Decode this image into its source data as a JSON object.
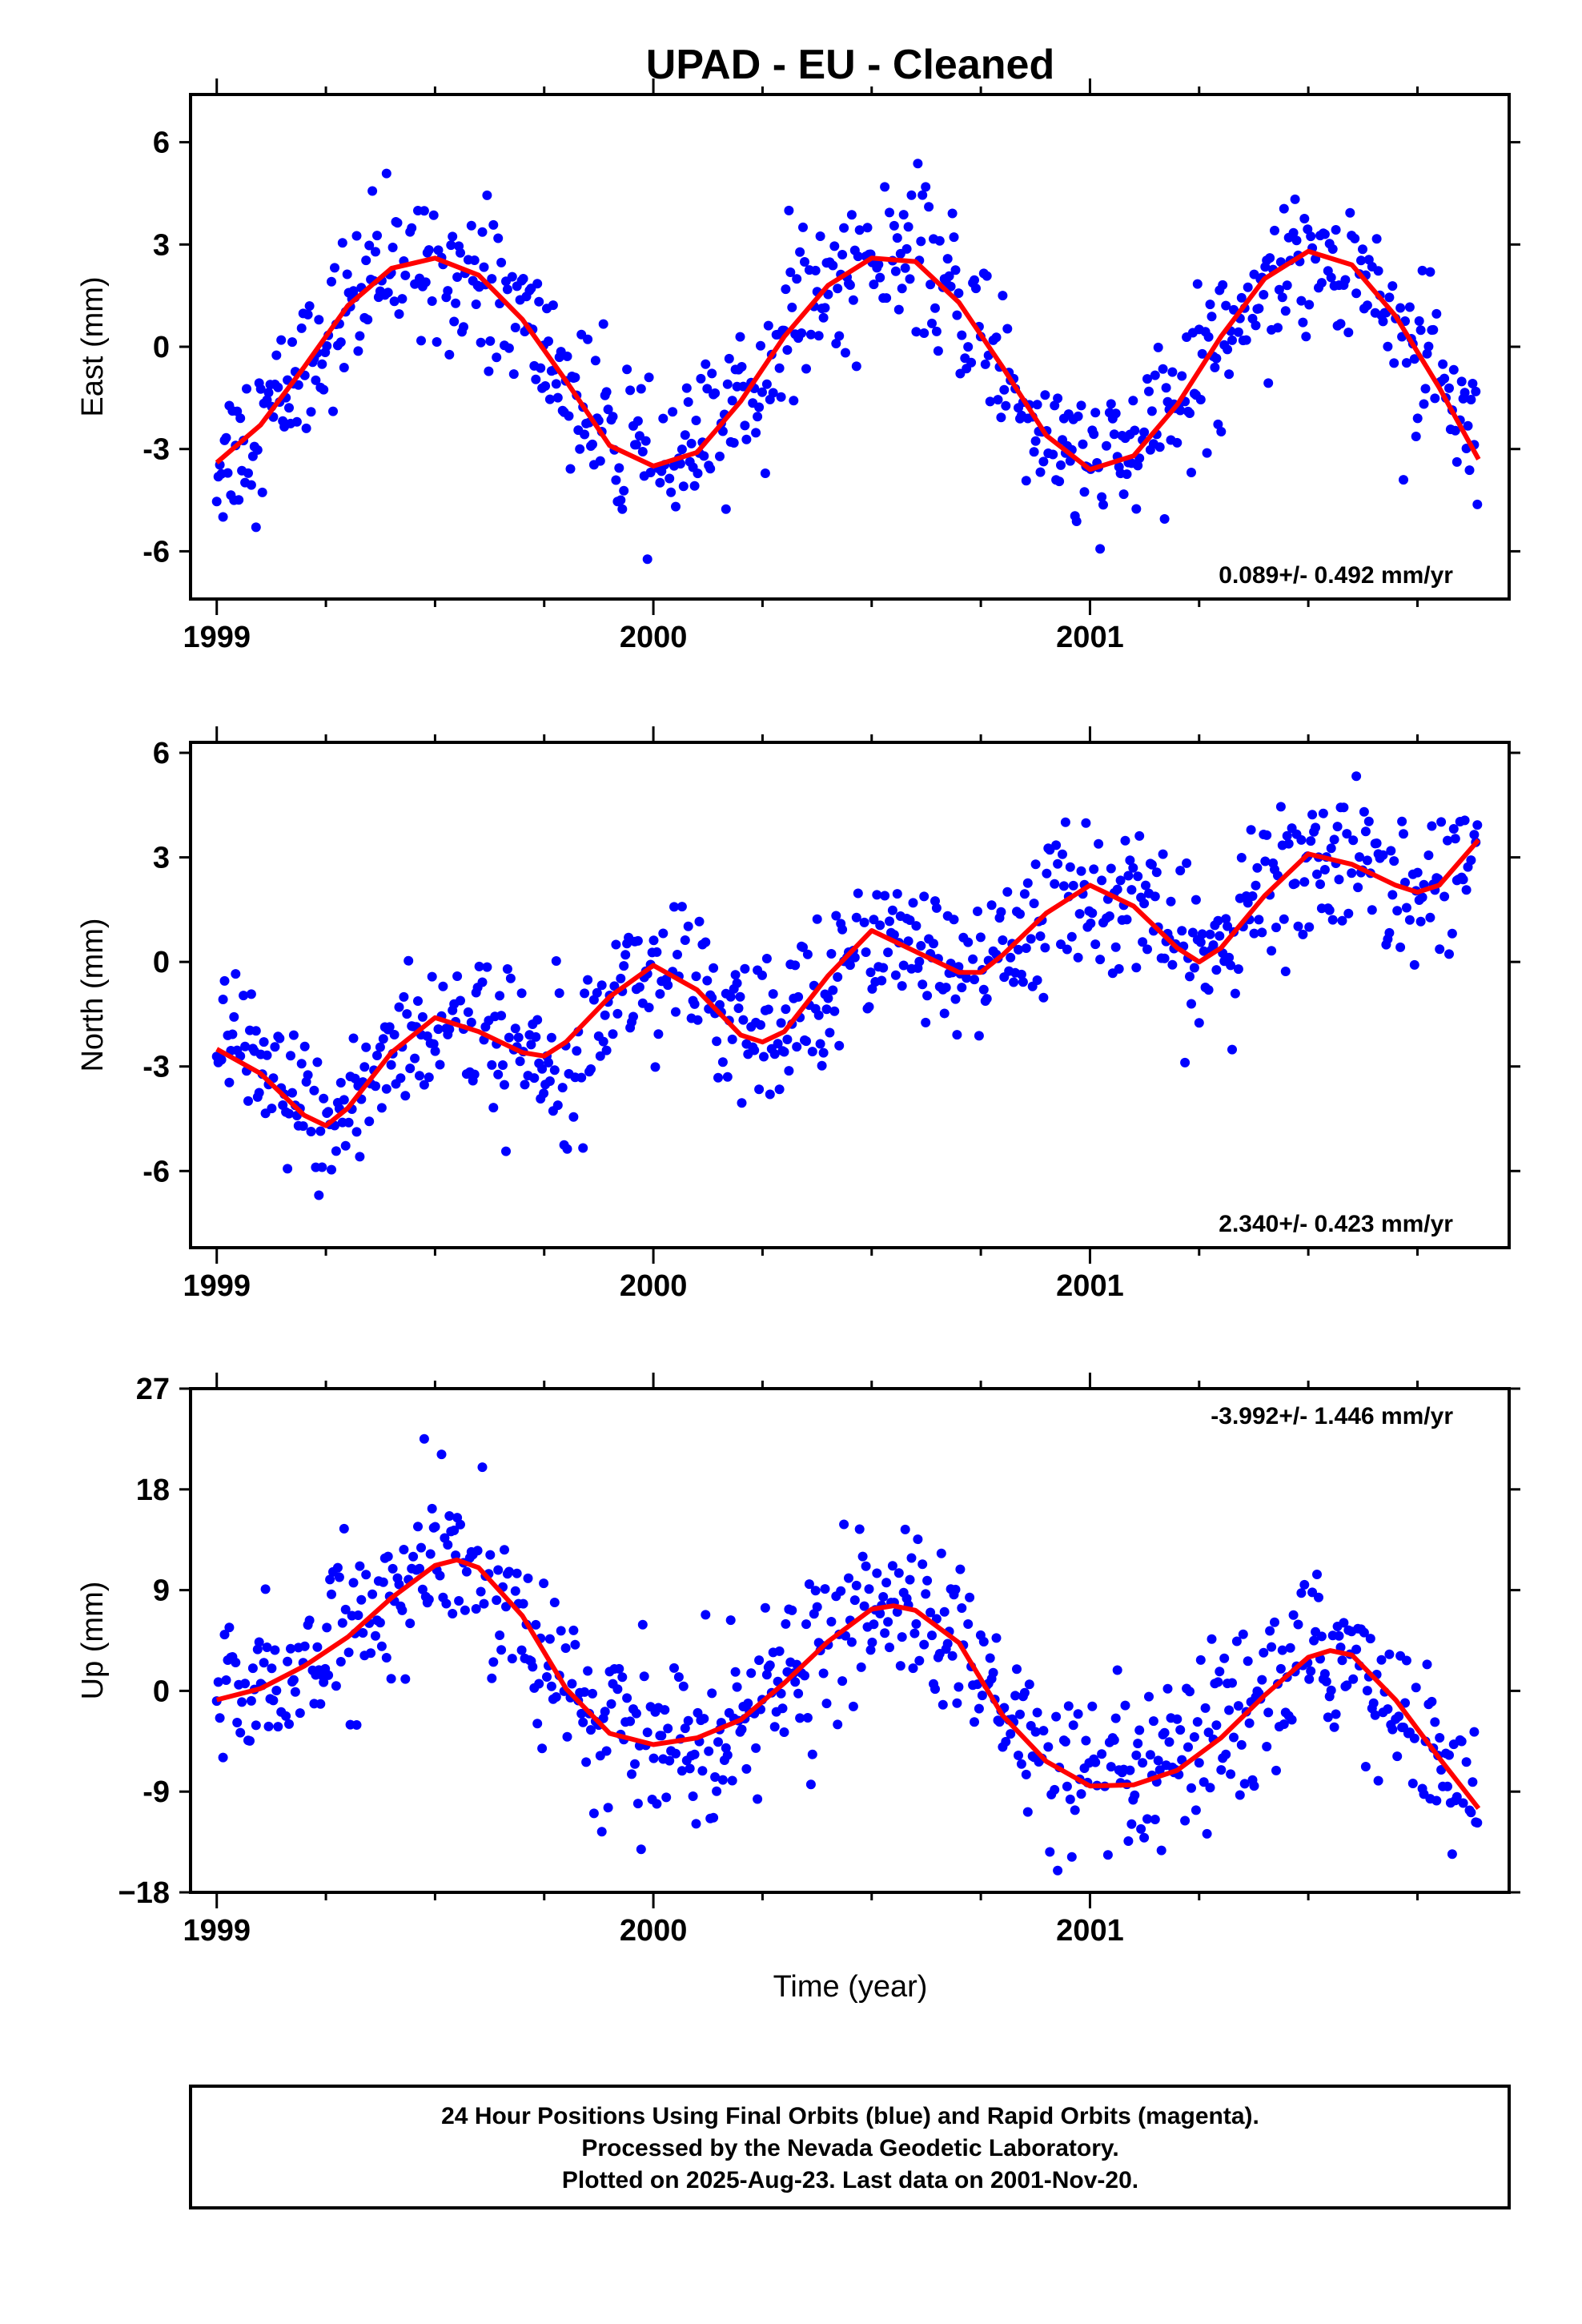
{
  "title": "UPAD  - EU - Cleaned",
  "colors": {
    "final_orbits": "#0000ff",
    "rapid_orbits": "#ff00ff",
    "model": "#ff0000",
    "frame": "#000000"
  },
  "x_axis": {
    "label": "Time (year)",
    "tick_labels": [
      "1999",
      "2000",
      "2001"
    ],
    "range": [
      1998.94,
      2001.96
    ]
  },
  "footer": {
    "line1": "24 Hour Positions Using Final Orbits (blue) and Rapid Orbits (magenta).",
    "line2": "Processed by the Nevada Geodetic Laboratory.",
    "line3": "Plotted on 2025-Aug-23. Last data on 2001-Nov-20."
  },
  "chart_data": [
    {
      "type": "scatter",
      "component": "east",
      "ylabel": "East (mm)",
      "ylim": [
        -7.4,
        7.4
      ],
      "y_tick_labels": [
        "6",
        "3",
        "0",
        "-3",
        "-6"
      ],
      "y_ticks": [
        6,
        3,
        0,
        -3,
        -6
      ],
      "rate_text": "0.089+/- 0.492 mm/yr",
      "rate_position": "bottom-right",
      "series": [
        {
          "kind": "model",
          "x": [
            1999.0,
            1999.1,
            1999.2,
            1999.3,
            1999.4,
            1999.5,
            1999.6,
            1999.7,
            1999.8,
            1999.9,
            2000.0,
            2000.1,
            2000.2,
            2000.3,
            2000.4,
            2000.5,
            2000.6,
            2000.7,
            2000.8,
            2000.9,
            2001.0,
            2001.1,
            2001.2,
            2001.3,
            2001.4,
            2001.5,
            2001.6,
            2001.7,
            2001.8,
            2001.89
          ],
          "y": [
            -3.4,
            -2.3,
            -0.6,
            1.2,
            2.3,
            2.6,
            2.1,
            0.8,
            -1.0,
            -2.9,
            -3.5,
            -3.1,
            -1.6,
            0.3,
            1.8,
            2.6,
            2.5,
            1.3,
            -0.6,
            -2.6,
            -3.6,
            -3.2,
            -1.7,
            0.3,
            2.0,
            2.8,
            2.4,
            0.9,
            -1.2,
            -3.3
          ]
        }
      ]
    },
    {
      "type": "scatter",
      "component": "north",
      "ylabel": "North (mm)",
      "ylim": [
        -8.2,
        6.3
      ],
      "y_tick_labels": [
        "6",
        "3",
        "0",
        "-3",
        "-6"
      ],
      "y_ticks": [
        6,
        3,
        0,
        -3,
        -6
      ],
      "rate_text": "2.340+/- 0.423 mm/yr",
      "rate_position": "bottom-right",
      "series": [
        {
          "kind": "model",
          "x": [
            1999.0,
            1999.1,
            1999.2,
            1999.25,
            1999.3,
            1999.4,
            1999.5,
            1999.6,
            1999.7,
            1999.75,
            1999.8,
            1999.9,
            2000.0,
            2000.1,
            2000.2,
            2000.25,
            2000.3,
            2000.4,
            2000.5,
            2000.6,
            2000.7,
            2000.75,
            2000.8,
            2000.9,
            2001.0,
            2001.1,
            2001.2,
            2001.25,
            2001.3,
            2001.4,
            2001.5,
            2001.6,
            2001.7,
            2001.75,
            2001.8,
            2001.89
          ],
          "y": [
            -2.5,
            -3.2,
            -4.4,
            -4.7,
            -4.2,
            -2.6,
            -1.6,
            -2.0,
            -2.6,
            -2.7,
            -2.3,
            -1.0,
            -0.1,
            -0.8,
            -2.1,
            -2.3,
            -2.0,
            -0.4,
            0.9,
            0.3,
            -0.3,
            -0.3,
            0.2,
            1.4,
            2.2,
            1.6,
            0.4,
            0.0,
            0.4,
            1.9,
            3.1,
            2.8,
            2.2,
            2.0,
            2.2,
            3.5
          ]
        }
      ]
    },
    {
      "type": "scatter",
      "component": "up",
      "ylabel": "Up (mm)",
      "ylim": [
        -18.0,
        27.0
      ],
      "y_tick_labels": [
        "27",
        "18",
        "9",
        "0",
        "-9",
        "−18"
      ],
      "y_ticks": [
        27,
        18,
        9,
        0,
        -9,
        -18
      ],
      "rate_text": "-3.992+/- 1.446 mm/yr",
      "rate_position": "top-right",
      "series": [
        {
          "kind": "model",
          "x": [
            1999.0,
            1999.1,
            1999.2,
            1999.3,
            1999.4,
            1999.5,
            1999.55,
            1999.6,
            1999.7,
            1999.8,
            1999.9,
            2000.0,
            2000.1,
            2000.2,
            2000.3,
            2000.4,
            2000.5,
            2000.55,
            2000.6,
            2000.7,
            2000.8,
            2000.9,
            2001.0,
            2001.1,
            2001.2,
            2001.3,
            2001.4,
            2001.5,
            2001.55,
            2001.6,
            2001.7,
            2001.8,
            2001.89
          ],
          "y": [
            -0.8,
            0.2,
            2.2,
            4.8,
            8.3,
            11.2,
            11.7,
            11.0,
            6.7,
            0.2,
            -3.8,
            -4.8,
            -4.2,
            -2.6,
            0.7,
            4.4,
            7.3,
            7.6,
            7.2,
            4.3,
            -2.2,
            -6.3,
            -8.5,
            -8.4,
            -7.1,
            -4.2,
            -0.4,
            3.0,
            3.6,
            3.2,
            -0.8,
            -6.0,
            -10.5
          ]
        }
      ]
    }
  ]
}
